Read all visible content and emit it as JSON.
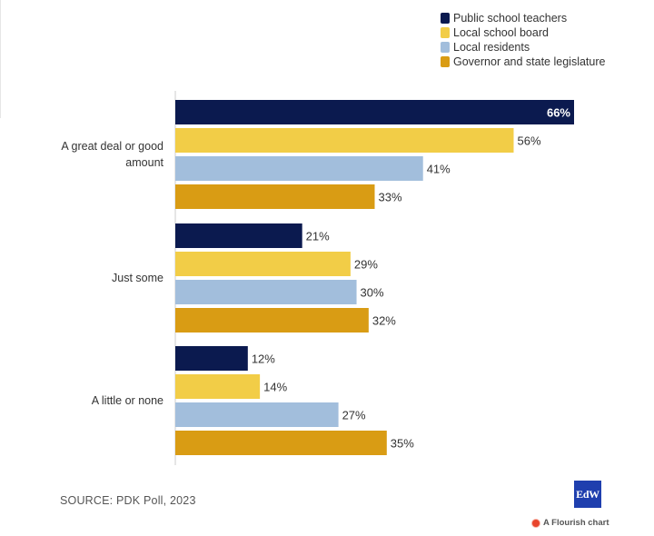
{
  "chart_data": {
    "type": "bar",
    "orientation": "horizontal",
    "categories": [
      "A great deal or good amount",
      "Just some",
      "A little or none"
    ],
    "series": [
      {
        "name": "Public school teachers",
        "values": [
          66,
          21,
          12
        ],
        "color": "#0b1a4f"
      },
      {
        "name": "Local school board",
        "values": [
          56,
          29,
          14
        ],
        "color": "#f2cd47"
      },
      {
        "name": "Local residents",
        "values": [
          41,
          30,
          27
        ],
        "color": "#a2bedc"
      },
      {
        "name": "Governor and state legislature",
        "values": [
          33,
          32,
          35
        ],
        "color": "#d99c14"
      }
    ],
    "value_suffix": "%",
    "xlim": [
      0,
      66
    ],
    "grid": false,
    "legend_position": "top-right"
  },
  "source": "SOURCE: PDK Poll, 2023",
  "logo_text": "EdW",
  "flourish_text": "A Flourish chart",
  "colors": {
    "label_on_dark": "#ffffff",
    "label_default": "#333333",
    "axis_line": "#cccccc"
  }
}
